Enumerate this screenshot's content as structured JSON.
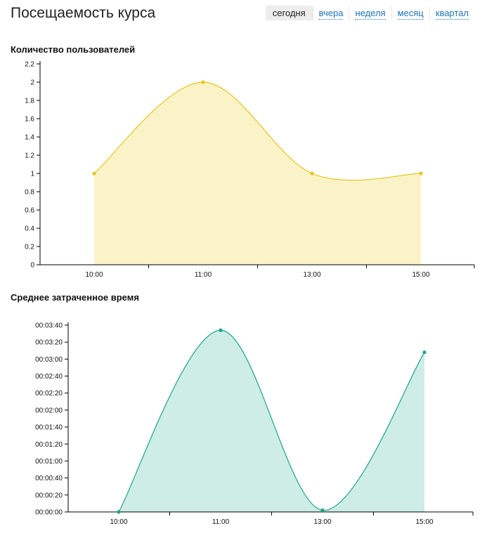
{
  "header": {
    "title": "Посещаемость курса",
    "tabs": [
      {
        "label": "сегодня",
        "active": true
      },
      {
        "label": "вчера",
        "active": false
      },
      {
        "label": "неделя",
        "active": false
      },
      {
        "label": "месяц",
        "active": false
      },
      {
        "label": "квартал",
        "active": false
      }
    ]
  },
  "chart_data": [
    {
      "type": "area",
      "title": "Количество пользователей",
      "xlabel": "",
      "ylabel": "",
      "categories": [
        "10:00",
        "11:00",
        "13:00",
        "15:00"
      ],
      "values": [
        1,
        2,
        1,
        1
      ],
      "y_ticks": [
        "0",
        "0.2",
        "0.4",
        "0.6",
        "0.8",
        "1",
        "1.2",
        "1.4",
        "1.6",
        "1.8",
        "2",
        "2.2"
      ],
      "ylim": [
        0,
        2.2
      ],
      "grid": false,
      "color": "#e8c619",
      "fill": "#faf3c8"
    },
    {
      "type": "area",
      "title": "Среднее затраченное время",
      "xlabel": "",
      "ylabel": "",
      "categories": [
        "10:00",
        "11:00",
        "13:00",
        "15:00"
      ],
      "values": [
        "00:00:00",
        "00:03:34",
        "00:00:02",
        "00:03:08"
      ],
      "y_ticks": [
        "00:00:00",
        "00:00:20",
        "00:00:40",
        "00:01:00",
        "00:01:20",
        "00:01:40",
        "00:02:00",
        "00:02:20",
        "00:02:40",
        "00:03:00",
        "00:03:20",
        "00:03:40"
      ],
      "ylim": [
        "00:00:00",
        "00:03:40"
      ],
      "grid": false,
      "color": "#1aa589",
      "fill": "#cdede6"
    }
  ]
}
